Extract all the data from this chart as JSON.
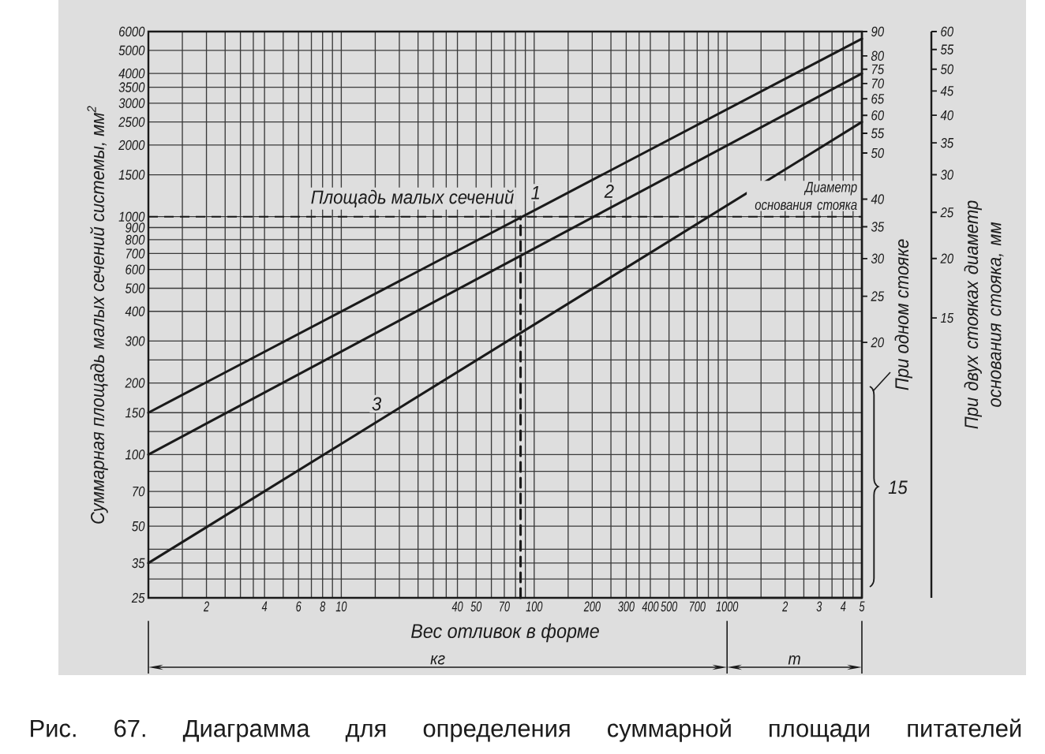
{
  "chart_data": [
    {
      "type": "line",
      "xlabel": "Вес отливок в форме",
      "ylabel": "Суммарная площадь малых сечений системы, мм$^{2}$",
      "series": [
        {
          "name": "1",
          "color": "#1a1a1a",
          "x": [
            1,
            5000
          ],
          "values": [
            150,
            5600
          ]
        },
        {
          "name": "2",
          "color": "#1a1a1a",
          "x": [
            1,
            5000
          ],
          "values": [
            100,
            4000
          ]
        },
        {
          "name": "3",
          "color": "#1a1a1a",
          "x": [
            1,
            5000
          ],
          "values": [
            35,
            2500
          ]
        },
        {
          "color": "#1a1a1a",
          "x": [
            85,
            85
          ],
          "values": [
            25,
            1000
          ],
          "line_style": "dashed"
        }
      ],
      "xlim": [
        1,
        5000
      ],
      "ylim": [
        25,
        6000
      ],
      "xticks": [
        {
          "value": 1.5,
          "label": null
        },
        2,
        {
          "value": 2.5,
          "label": null
        },
        {
          "value": 3,
          "label": null
        },
        {
          "value": 3.5,
          "label": null
        },
        4,
        {
          "value": 5,
          "label": null
        },
        6,
        {
          "value": 7,
          "label": null
        },
        8,
        {
          "value": 9,
          "label": null
        },
        10,
        {
          "value": 15,
          "label": null
        },
        {
          "value": 20,
          "label": null
        },
        {
          "value": 25,
          "label": null
        },
        {
          "value": 30,
          "label": null
        },
        {
          "value": 35,
          "label": null
        },
        40,
        50,
        {
          "value": 60,
          "label": null
        },
        70,
        {
          "value": 80,
          "label": null
        },
        {
          "value": 90,
          "label": null
        },
        100,
        {
          "value": 150,
          "label": null
        },
        200,
        {
          "value": 250,
          "label": null
        },
        300,
        {
          "value": 350,
          "label": null
        },
        400,
        500,
        {
          "value": 600,
          "label": null
        },
        700,
        {
          "value": 800,
          "label": null
        },
        {
          "value": 900,
          "label": null
        },
        1000,
        {
          "value": 1500,
          "label": null
        },
        {
          "value": 2000,
          "label": null
        },
        {
          "value": 2500,
          "label": null
        },
        {
          "value": 3000,
          "label": null
        },
        {
          "value": 3500,
          "label": null
        },
        {
          "value": 4000,
          "label": null
        },
        {
          "value": 4500,
          "label": null
        }
      ],
      "yticks": [
        25,
        {
          "value": 30,
          "label": null
        },
        35,
        {
          "value": 40,
          "label": null
        },
        50,
        {
          "value": 60,
          "label": null
        },
        70,
        {
          "value": 85,
          "label": null
        },
        100,
        {
          "value": 125,
          "label": null
        },
        150,
        200,
        {
          "value": 250,
          "label": null
        },
        300,
        400,
        500,
        600,
        700,
        800,
        900,
        1000,
        1500,
        2000,
        2500,
        3000,
        3500,
        4000,
        5000,
        6000
      ],
      "log": "xy",
      "grid": true,
      "ref_lines": [
        {
          "axis": "y",
          "value": 1000,
          "label": "Площадь малых сечений",
          "line_style": "dashed"
        }
      ],
      "annotations": [
        "кг",
        "Рис. 67. Диаграмма для определения суммарной площади питателей"
      ]
    },
    {
      "type": "line",
      "xlabel": "т",
      "xlim": [
        1,
        5
      ],
      "ylim": [
        25,
        6000
      ],
      "xticks": [
        2,
        3,
        4,
        5
      ],
      "log": "xy",
      "tick_labels": "x"
    },
    {
      "type": "line",
      "ylabel": "При одном стояке",
      "xlim": [
        1,
        5000
      ],
      "ylim": [
        5.81,
        90
      ],
      "yticks": [
        20,
        25,
        30,
        35,
        40,
        50,
        55,
        60,
        65,
        70,
        75,
        80,
        90
      ],
      "log": "xy",
      "tick_labels": "y",
      "annotations": [
        "Диаметр основания стояка",
        "15"
      ]
    },
    {
      "type": "line",
      "ylabel": "При двух стояках диаметр основания стояка, мм",
      "xlim": [
        1,
        5000
      ],
      "ylim": [
        3.87,
        60
      ],
      "yticks": [
        15,
        20,
        25,
        30,
        35,
        40,
        45,
        50,
        55,
        60
      ],
      "log": "xy",
      "tick_labels": "y"
    }
  ]
}
